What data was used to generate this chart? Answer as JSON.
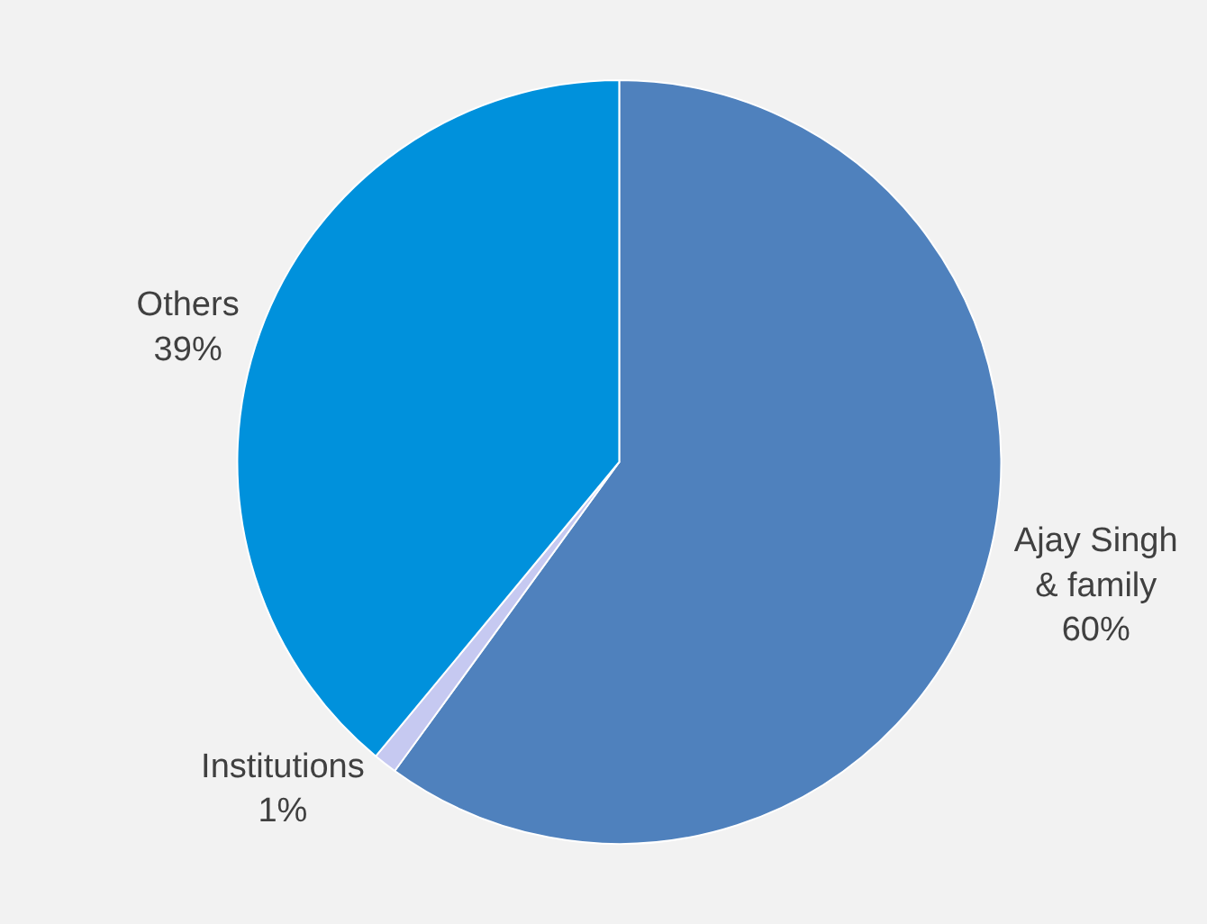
{
  "chart_data": {
    "type": "pie",
    "categories": [
      "Ajay Singh\n& family",
      "Institutions",
      "Others"
    ],
    "values": [
      60,
      1,
      39
    ],
    "value_labels": [
      "60%",
      "1%",
      "39%"
    ],
    "colors": [
      "#4f81bd",
      "#c6c9f1",
      "#0091dc"
    ]
  }
}
